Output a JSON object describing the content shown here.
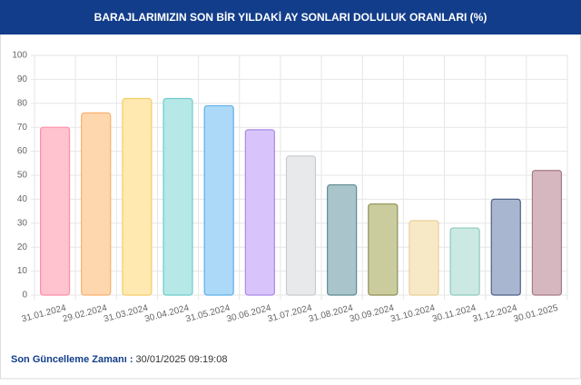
{
  "chart_data": {
    "type": "bar",
    "title": "BARAJLARIMIZIN SON BİR YILDAKİ AY SONLARI DOLULUK ORANLARI (%)",
    "categories": [
      "31.01.2024",
      "29.02.2024",
      "31.03.2024",
      "30.04.2024",
      "31.05.2024",
      "30.06.2024",
      "31.07.2024",
      "31.08.2024",
      "30.09.2024",
      "31.10.2024",
      "30.11.2024",
      "31.12.2024",
      "30.01.2025"
    ],
    "values": [
      70,
      76,
      82,
      82,
      79,
      69,
      58,
      46,
      38,
      31,
      28,
      40,
      52
    ],
    "colors": [
      "#ffc2cf",
      "#ffd7ae",
      "#ffe9b0",
      "#b6e8e8",
      "#acd9f7",
      "#d8c4fa",
      "#e8e9eb",
      "#a9c5cb",
      "#cbcc9e",
      "#f8e9c6",
      "#cbe9e2",
      "#a9b6cf",
      "#d6b7c0"
    ],
    "borders": [
      "#ff8fa8",
      "#f7b06e",
      "#f4cd6a",
      "#6fcbcb",
      "#5fb0e8",
      "#a98ae6",
      "#c9cbcf",
      "#5f8a94",
      "#8e8f55",
      "#e7cf94",
      "#8ccbbb",
      "#4e5f86",
      "#a67a88"
    ],
    "ylim": [
      0,
      100
    ],
    "yticks": [
      0,
      10,
      20,
      30,
      40,
      50,
      60,
      70,
      80,
      90,
      100
    ],
    "grid": true
  },
  "footer": {
    "label": "Son Güncelleme Zamanı :",
    "value": "30/01/2025 09:19:08"
  }
}
